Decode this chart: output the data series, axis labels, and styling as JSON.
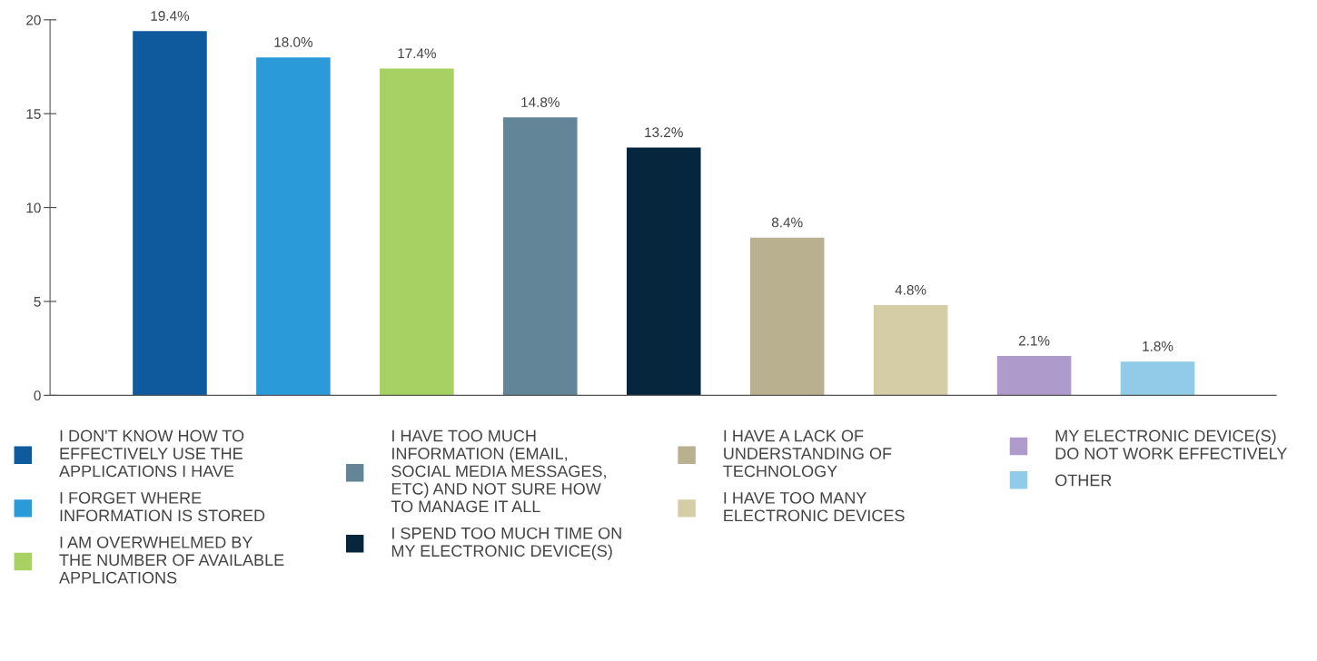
{
  "chart_data": {
    "type": "bar",
    "categories": [
      null,
      null,
      null,
      null,
      null,
      null,
      null,
      null,
      null
    ],
    "series": [
      {
        "name": "I DON'T KNOW HOW TO\nEFFECTIVELY USE THE\nAPPLICATIONS I HAVE",
        "color": "#0e5a9c",
        "values": [
          19.4,
          null,
          null,
          null,
          null,
          null,
          null,
          null,
          null
        ],
        "value_labels": [
          "19.4%",
          null,
          null,
          null,
          null,
          null,
          null,
          null,
          null
        ]
      },
      {
        "name": "I FORGET WHERE\nINFORMATION IS STORED",
        "color": "#2a9bd8",
        "values": [
          null,
          18.0,
          null,
          null,
          null,
          null,
          null,
          null,
          null
        ],
        "value_labels": [
          null,
          "18.0%",
          null,
          null,
          null,
          null,
          null,
          null,
          null
        ]
      },
      {
        "name": "I AM OVERWHELMED BY\nTHE NUMBER OF AVAILABLE\nAPPLICATIONS",
        "color": "#a8d164",
        "values": [
          null,
          null,
          17.4,
          null,
          null,
          null,
          null,
          null,
          null
        ],
        "value_labels": [
          null,
          null,
          "17.4%",
          null,
          null,
          null,
          null,
          null,
          null
        ]
      },
      {
        "name": "I HAVE TOO MUCH\nINFORMATION (EMAIL,\nSOCIAL MEDIA MESSAGES,\nETC) AND NOT SURE HOW\nTO MANAGE IT ALL",
        "color": "#628597",
        "values": [
          null,
          null,
          null,
          14.8,
          null,
          null,
          null,
          null,
          null
        ],
        "value_labels": [
          null,
          null,
          null,
          "14.8%",
          null,
          null,
          null,
          null,
          null
        ]
      },
      {
        "name": "I SPEND TOO MUCH TIME ON\nMY ELECTRONIC DEVICE(S)",
        "color": "#05263d",
        "values": [
          null,
          null,
          null,
          null,
          13.2,
          null,
          null,
          null,
          null
        ],
        "value_labels": [
          null,
          null,
          null,
          null,
          "13.2%",
          null,
          null,
          null,
          null
        ]
      },
      {
        "name": "I HAVE A LACK OF\nUNDERSTANDING OF\nTECHNOLOGY",
        "color": "#b8b08f",
        "values": [
          null,
          null,
          null,
          null,
          null,
          8.4,
          null,
          null,
          null
        ],
        "value_labels": [
          null,
          null,
          null,
          null,
          null,
          "8.4%",
          null,
          null,
          null
        ]
      },
      {
        "name": "I HAVE TOO MANY\nELECTRONIC DEVICES",
        "color": "#d5cda5",
        "values": [
          null,
          null,
          null,
          null,
          null,
          null,
          4.8,
          null,
          null
        ],
        "value_labels": [
          null,
          null,
          null,
          null,
          null,
          null,
          "4.8%",
          null,
          null
        ]
      },
      {
        "name": "MY ELECTRONIC DEVICE(S)\nDO NOT WORK EFFECTIVELY",
        "color": "#ae9bcb",
        "values": [
          null,
          null,
          null,
          null,
          null,
          null,
          null,
          2.1,
          null
        ],
        "value_labels": [
          null,
          null,
          null,
          null,
          null,
          null,
          null,
          "2.1%",
          null
        ]
      },
      {
        "name": "OTHER",
        "color": "#92cbe8",
        "values": [
          null,
          null,
          null,
          null,
          null,
          null,
          null,
          null,
          1.8
        ],
        "value_labels": [
          null,
          null,
          null,
          null,
          null,
          null,
          null,
          null,
          "1.8%"
        ]
      }
    ],
    "ylim": [
      0,
      20
    ],
    "yticks": [
      0,
      5,
      10,
      15,
      20
    ],
    "legend": "bottom",
    "marker": "square",
    "grid": false
  }
}
